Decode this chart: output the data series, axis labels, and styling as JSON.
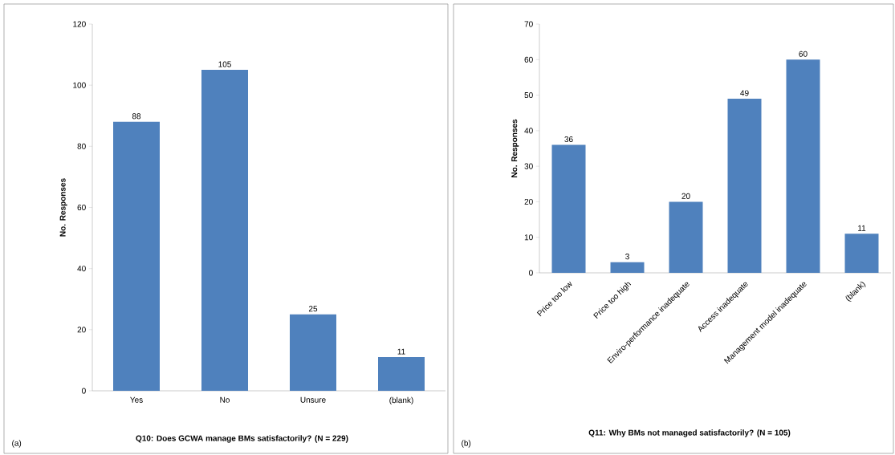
{
  "chart_data": [
    {
      "type": "bar",
      "title": "Q10:  Does GCWA manage BMs satisfactorily? (N = 229)",
      "ylabel": "No. Responses",
      "categories": [
        "Yes",
        "No",
        "Unsure",
        "(blank)"
      ],
      "values": [
        88,
        105,
        25,
        11
      ],
      "color": "#4f81bd",
      "ylim": [
        0,
        120
      ],
      "yticks": [
        0,
        20,
        40,
        60,
        80,
        100,
        120
      ],
      "data_labels": true,
      "annotations": [
        "(a)"
      ]
    },
    {
      "type": "bar",
      "title": "Q11:  Why BMs not managed satisfactorily? (N = 105)",
      "ylabel": "No. Responses",
      "categories": [
        "Price too low",
        "Price too high",
        "Enviro-performance inadequate",
        "Access inadequate",
        "Management model inadequate",
        "(blank)"
      ],
      "values": [
        36,
        3,
        20,
        49,
        60,
        11
      ],
      "color": "#4f81bd",
      "ylim": [
        0,
        70
      ],
      "yticks": [
        0,
        10,
        20,
        30,
        40,
        50,
        60,
        70
      ],
      "data_labels": true,
      "annotations": [
        "(b)"
      ]
    }
  ]
}
